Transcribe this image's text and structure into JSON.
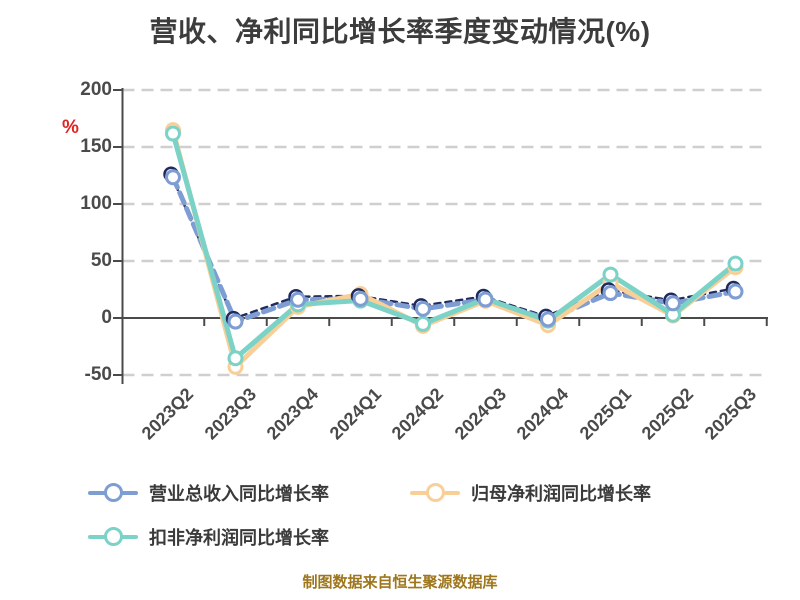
{
  "title": "营收、净利同比增长率季度变动情况(%)",
  "y_axis_unit": "%",
  "caption": "制图数据来自恒生聚源数据库",
  "colors": {
    "background": "#ffffff",
    "grid": "#cfcfcf",
    "axis": "#4a4a4a",
    "title_text": "#3c3c3c",
    "tick_text": "#4a4a4a",
    "legend_text": "#3a3a3a",
    "caption_text": "#9e761c",
    "unit_text": "#e02422",
    "revenue_overlay_navy": "#1f2b5f"
  },
  "chart_data": {
    "type": "line",
    "title": "营收、净利同比增长率季度变动情况(%)",
    "xlabel": "",
    "ylabel": "%",
    "ylim": [
      -50,
      200
    ],
    "yticks": [
      200,
      150,
      100,
      50,
      0,
      -50
    ],
    "grid": "dashed horizontal",
    "legend_position": "bottom-left, two rows",
    "categories": [
      "2023Q2",
      "2023Q3",
      "2023Q4",
      "2024Q1",
      "2024Q2",
      "2024Q3",
      "2024Q4",
      "2025Q1",
      "2025Q2",
      "2025Q3"
    ],
    "series": [
      {
        "name": "营业总收入同比增长率",
        "color": "#7e9dd3",
        "style": "dashed line with navy dashed overlay, white circle markers",
        "values": [
          123.5,
          -3.2,
          16.0,
          16.8,
          8.0,
          16.2,
          -1.2,
          21.9,
          12.9,
          23.2
        ]
      },
      {
        "name": "归母净利润同比增长率",
        "color": "#f9cf98",
        "style": "solid line, white circle markers",
        "values": [
          164.8,
          -42.8,
          9.8,
          21.0,
          -6.9,
          15.1,
          -6.2,
          30.8,
          2.2,
          44.6
        ]
      },
      {
        "name": "扣非净利润同比增长率",
        "color": "#7bd2c7",
        "style": "solid line, white circle markers",
        "values": [
          161.8,
          -35.3,
          11.9,
          15.3,
          -5.2,
          16.9,
          -2.3,
          38.1,
          2.9,
          47.7
        ]
      }
    ]
  }
}
